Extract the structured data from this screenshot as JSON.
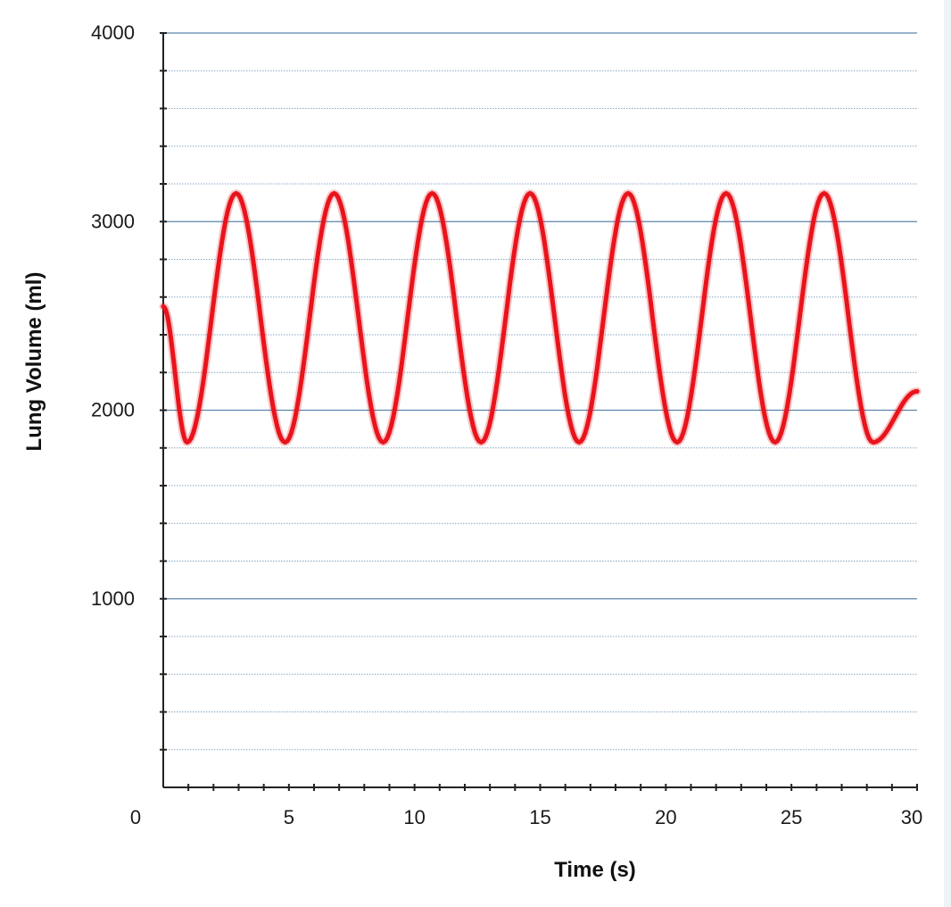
{
  "chart_data": {
    "type": "line",
    "title": "",
    "xlabel": "Time (s)",
    "ylabel": "Lung Volume (ml)",
    "xlim": [
      0,
      30
    ],
    "ylim": [
      0,
      4000
    ],
    "x_ticks": [
      0,
      5,
      10,
      15,
      20,
      25,
      30
    ],
    "y_ticks": [
      1000,
      2000,
      3000,
      4000
    ],
    "grid": true,
    "legend": "none",
    "series": [
      {
        "color": "#e8141c",
        "x": [
          0,
          0.95,
          2.9,
          4.85,
          6.8,
          8.75,
          10.7,
          12.65,
          14.6,
          16.55,
          18.5,
          20.45,
          22.4,
          24.35,
          26.3,
          28.25,
          30
        ],
        "y": [
          2550,
          1830,
          3150,
          1830,
          3150,
          1830,
          3150,
          1830,
          3150,
          1830,
          3150,
          1830,
          3150,
          1830,
          3150,
          1830,
          2100
        ]
      }
    ],
    "colors": {
      "line": "#e8141c",
      "grid": "#5b86ad",
      "axis": "#222222"
    }
  }
}
